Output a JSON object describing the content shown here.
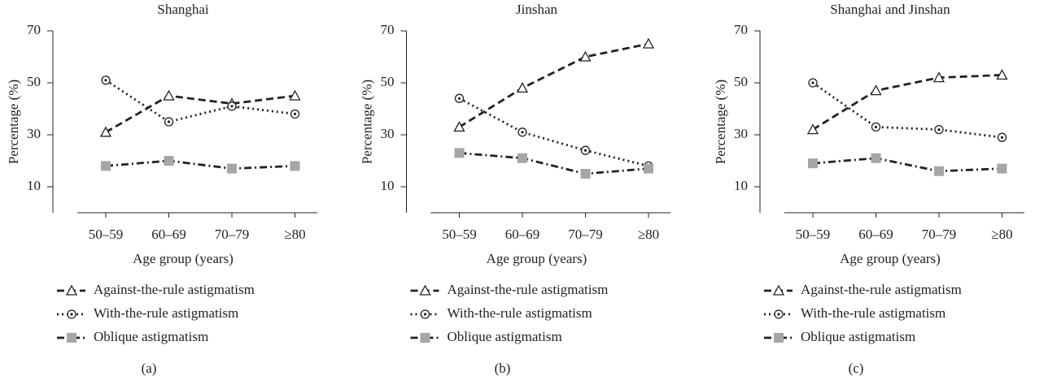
{
  "chart_data": [
    {
      "type": "line",
      "title": "Shanghai",
      "x_label": "Age group (years)",
      "y_label": "Percentage (%)",
      "panel_label": "(a)",
      "categories": [
        "50–59",
        "60–69",
        "70–79",
        "≥80"
      ],
      "ylim": [
        0,
        70
      ],
      "yticks": [
        10,
        30,
        50,
        70
      ],
      "series": [
        {
          "name": "Against-the-rule astigmatism",
          "color": "#222222",
          "marker": "triangle",
          "linestyle": "dashed",
          "values": [
            31,
            45,
            42,
            45
          ]
        },
        {
          "name": "With-the-rule astigmatism",
          "color": "#222222",
          "marker": "circle-dot",
          "linestyle": "dotted",
          "values": [
            51,
            35,
            41,
            38
          ]
        },
        {
          "name": "Oblique astigmatism",
          "color": "#222222",
          "marker_color": "#a6a6a6",
          "marker": "square",
          "linestyle": "dashdot",
          "values": [
            18,
            20,
            17,
            18
          ]
        }
      ]
    },
    {
      "type": "line",
      "title": "Jinshan",
      "x_label": "Age group (years)",
      "y_label": "Percentage (%)",
      "panel_label": "(b)",
      "categories": [
        "50–59",
        "60–69",
        "70–79",
        "≥80"
      ],
      "ylim": [
        0,
        70
      ],
      "yticks": [
        10,
        30,
        50,
        70
      ],
      "series": [
        {
          "name": "Against-the-rule astigmatism",
          "color": "#222222",
          "marker": "triangle",
          "linestyle": "dashed",
          "values": [
            33,
            48,
            60,
            65
          ]
        },
        {
          "name": "With-the-rule astigmatism",
          "color": "#222222",
          "marker": "circle-dot",
          "linestyle": "dotted",
          "values": [
            44,
            31,
            24,
            18
          ]
        },
        {
          "name": "Oblique astigmatism",
          "color": "#222222",
          "marker_color": "#a6a6a6",
          "marker": "square",
          "linestyle": "dashdot",
          "values": [
            23,
            21,
            15,
            17
          ]
        }
      ]
    },
    {
      "type": "line",
      "title": "Shanghai and Jinshan",
      "x_label": "Age group (years)",
      "y_label": "Percentage (%)",
      "panel_label": "(c)",
      "categories": [
        "50–59",
        "60–69",
        "70–79",
        "≥80"
      ],
      "ylim": [
        0,
        70
      ],
      "yticks": [
        10,
        30,
        50,
        70
      ],
      "series": [
        {
          "name": "Against-the-rule astigmatism",
          "color": "#222222",
          "marker": "triangle",
          "linestyle": "dashed",
          "values": [
            32,
            47,
            52,
            53
          ]
        },
        {
          "name": "With-the-rule astigmatism",
          "color": "#222222",
          "marker": "circle-dot",
          "linestyle": "dotted",
          "values": [
            50,
            33,
            32,
            29
          ]
        },
        {
          "name": "Oblique astigmatism",
          "color": "#222222",
          "marker_color": "#a6a6a6",
          "marker": "square",
          "linestyle": "dashdot",
          "values": [
            19,
            21,
            16,
            17
          ]
        }
      ]
    }
  ]
}
